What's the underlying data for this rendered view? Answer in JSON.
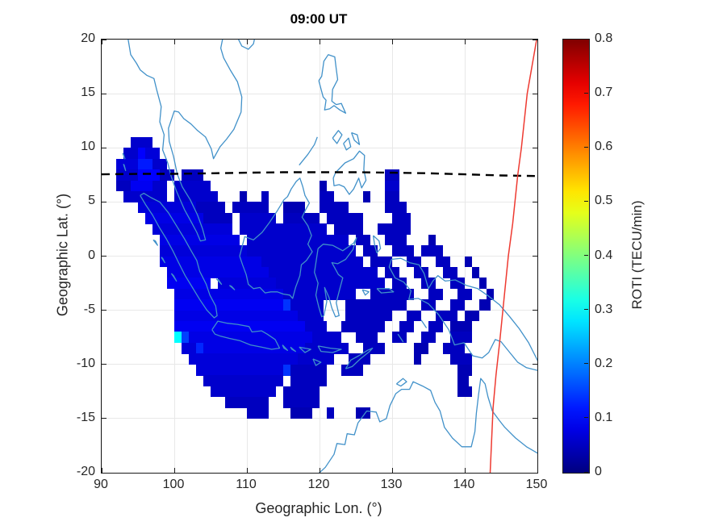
{
  "title": "09:00 UT",
  "axes": {
    "xlabel": "Geographic Lon. (°)",
    "ylabel": "Geographic Lat. (°)",
    "xlim": [
      90,
      150
    ],
    "ylim": [
      -20,
      20
    ],
    "xticks": [
      90,
      100,
      110,
      120,
      130,
      140,
      150
    ],
    "yticks": [
      20,
      15,
      10,
      5,
      0,
      -5,
      -10,
      -15,
      -20
    ]
  },
  "colorbar": {
    "label": "ROTI (TECU/min)",
    "min": 0,
    "max": 0.8,
    "ticks": [
      0,
      0.1,
      0.2,
      0.3,
      0.4,
      0.5,
      0.6,
      0.7,
      0.8
    ],
    "colormap": "jet"
  },
  "colors": {
    "coastline": "#4191c9",
    "magnetic_equator": "#000000",
    "terminator": "#ee3a31",
    "grid": "#e8e8e8",
    "label_text": "#262626"
  },
  "chart_data": {
    "type": "heatmap",
    "title": "09:00 UT",
    "xlabel": "Geographic Lon. (°)",
    "ylabel": "Geographic Lat. (°)",
    "xlim": [
      90,
      150
    ],
    "ylim": [
      -20,
      20
    ],
    "grid": true,
    "value_name": "ROTI",
    "value_unit": "TECU/min",
    "value_range": [
      0,
      0.8
    ],
    "cell_size_deg": 1,
    "rows_note": "lat_top = top latitude of 1-deg row; spans = [lon_start, lon_end, ROTI value]",
    "rows": [
      {
        "lat_top": 11,
        "spans": [
          [
            94,
            97,
            0.06
          ]
        ]
      },
      {
        "lat_top": 10,
        "spans": [
          [
            93,
            95,
            0.06
          ],
          [
            95,
            96,
            0.1
          ],
          [
            96,
            98,
            0.07
          ]
        ]
      },
      {
        "lat_top": 9,
        "spans": [
          [
            92,
            95,
            0.07
          ],
          [
            95,
            97,
            0.12
          ],
          [
            97,
            99,
            0.06
          ]
        ]
      },
      {
        "lat_top": 8,
        "spans": [
          [
            92,
            95,
            0.06
          ],
          [
            95,
            98,
            0.1
          ],
          [
            98,
            100,
            0.05
          ],
          [
            101,
            104,
            0.05
          ],
          [
            129,
            131,
            0.05
          ]
        ]
      },
      {
        "lat_top": 7,
        "spans": [
          [
            92,
            94,
            0.05
          ],
          [
            94,
            97,
            0.09
          ],
          [
            97,
            99,
            0.06
          ],
          [
            100,
            105,
            0.06
          ],
          [
            120,
            121,
            0.04
          ],
          [
            129,
            131,
            0.06
          ]
        ]
      },
      {
        "lat_top": 6,
        "spans": [
          [
            93,
            99,
            0.06
          ],
          [
            100,
            106,
            0.06
          ],
          [
            109,
            110,
            0.04
          ],
          [
            112,
            113,
            0.05
          ],
          [
            120,
            122,
            0.05
          ],
          [
            126,
            127,
            0.04
          ],
          [
            129,
            131,
            0.05
          ]
        ]
      },
      {
        "lat_top": 5,
        "spans": [
          [
            95,
            103,
            0.07
          ],
          [
            103,
            107,
            0.05
          ],
          [
            108,
            113,
            0.05
          ],
          [
            115,
            118,
            0.04
          ],
          [
            120,
            124,
            0.05
          ],
          [
            129,
            132,
            0.05
          ]
        ]
      },
      {
        "lat_top": 4,
        "spans": [
          [
            96,
            104,
            0.08
          ],
          [
            104,
            108,
            0.05
          ],
          [
            109,
            114,
            0.06
          ],
          [
            115,
            120,
            0.05
          ],
          [
            121,
            126,
            0.05
          ],
          [
            130,
            132.5,
            0.05
          ]
        ]
      },
      {
        "lat_top": 3,
        "spans": [
          [
            97,
            108,
            0.07
          ],
          [
            109,
            121,
            0.06
          ],
          [
            122,
            126,
            0.05
          ],
          [
            128,
            132.5,
            0.05
          ]
        ]
      },
      {
        "lat_top": 2,
        "spans": [
          [
            98,
            109,
            0.08
          ],
          [
            110,
            124,
            0.06
          ],
          [
            125,
            127,
            0.05
          ],
          [
            129,
            132,
            0.05
          ],
          [
            135,
            136,
            0.04
          ]
        ]
      },
      {
        "lat_top": 1,
        "spans": [
          [
            98,
            110,
            0.07
          ],
          [
            110,
            125,
            0.06
          ],
          [
            126,
            128,
            0.05
          ],
          [
            130,
            133,
            0.05
          ],
          [
            134,
            137,
            0.05
          ]
        ]
      },
      {
        "lat_top": 0,
        "spans": [
          [
            98,
            112,
            0.08
          ],
          [
            112,
            126,
            0.06
          ],
          [
            127,
            130,
            0.05
          ],
          [
            132,
            134,
            0.05
          ],
          [
            136,
            138,
            0.05
          ],
          [
            140,
            141,
            0.04
          ]
        ]
      },
      {
        "lat_top": -1,
        "spans": [
          [
            99,
            113,
            0.08
          ],
          [
            113,
            128,
            0.06
          ],
          [
            129,
            131,
            0.05
          ],
          [
            133,
            135,
            0.05
          ],
          [
            137,
            139,
            0.05
          ],
          [
            141,
            142,
            0.04
          ]
        ]
      },
      {
        "lat_top": -2,
        "spans": [
          [
            99,
            105,
            0.09
          ],
          [
            106,
            114,
            0.07
          ],
          [
            114,
            129,
            0.06
          ],
          [
            130,
            132,
            0.05
          ],
          [
            134,
            136,
            0.05
          ],
          [
            138,
            140,
            0.05
          ],
          [
            142,
            143,
            0.04
          ]
        ]
      },
      {
        "lat_top": -3,
        "spans": [
          [
            100,
            115,
            0.08
          ],
          [
            115,
            125,
            0.06
          ],
          [
            127,
            133,
            0.05
          ],
          [
            135,
            137,
            0.05
          ],
          [
            139,
            141,
            0.05
          ],
          [
            143,
            144,
            0.04
          ]
        ]
      },
      {
        "lat_top": -4,
        "spans": [
          [
            100,
            115,
            0.09
          ],
          [
            115,
            116,
            0.14
          ],
          [
            116,
            120.5,
            0.06
          ],
          [
            123.5,
            132,
            0.05
          ],
          [
            134,
            136,
            0.05
          ],
          [
            138,
            140,
            0.05
          ],
          [
            142,
            143.5,
            0.04
          ]
        ]
      },
      {
        "lat_top": -5,
        "spans": [
          [
            100,
            117,
            0.08
          ],
          [
            117,
            120.5,
            0.06
          ],
          [
            123.5,
            130,
            0.05
          ],
          [
            132,
            134,
            0.05
          ],
          [
            136,
            139,
            0.05
          ],
          [
            140,
            142,
            0.04
          ]
        ]
      },
      {
        "lat_top": -6,
        "spans": [
          [
            100,
            118,
            0.09
          ],
          [
            118,
            121,
            0.06
          ],
          [
            123,
            129,
            0.05
          ],
          [
            131,
            133,
            0.05
          ],
          [
            135,
            137,
            0.05
          ],
          [
            138,
            141,
            0.04
          ]
        ]
      },
      {
        "lat_top": -7,
        "spans": [
          [
            100,
            101,
            0.3
          ],
          [
            101,
            102,
            0.15
          ],
          [
            102,
            119,
            0.08
          ],
          [
            119,
            123,
            0.06
          ],
          [
            125,
            128,
            0.05
          ],
          [
            130,
            132,
            0.05
          ],
          [
            134,
            136,
            0.05
          ],
          [
            138,
            141,
            0.05
          ]
        ]
      },
      {
        "lat_top": -8,
        "spans": [
          [
            101,
            103,
            0.07
          ],
          [
            103,
            104,
            0.13
          ],
          [
            104,
            118,
            0.08
          ],
          [
            118,
            124,
            0.06
          ],
          [
            126,
            129,
            0.05
          ],
          [
            133,
            135,
            0.04
          ],
          [
            137,
            140,
            0.05
          ]
        ]
      },
      {
        "lat_top": -9,
        "spans": [
          [
            102,
            117,
            0.07
          ],
          [
            117,
            122,
            0.06
          ],
          [
            124,
            127,
            0.05
          ],
          [
            133,
            134,
            0.04
          ],
          [
            138,
            141,
            0.05
          ]
        ]
      },
      {
        "lat_top": -10,
        "spans": [
          [
            103,
            115,
            0.07
          ],
          [
            115,
            116,
            0.14
          ],
          [
            116,
            121,
            0.05
          ],
          [
            123,
            126,
            0.05
          ],
          [
            139,
            141,
            0.04
          ]
        ]
      },
      {
        "lat_top": -11,
        "spans": [
          [
            104,
            115,
            0.06
          ],
          [
            116,
            121,
            0.05
          ],
          [
            139,
            140.5,
            0.04
          ]
        ]
      },
      {
        "lat_top": -12,
        "spans": [
          [
            105,
            114,
            0.06
          ],
          [
            115,
            120,
            0.05
          ],
          [
            139,
            141,
            0.04
          ]
        ]
      },
      {
        "lat_top": -13,
        "spans": [
          [
            107,
            113,
            0.05
          ],
          [
            115,
            120,
            0.05
          ]
        ]
      },
      {
        "lat_top": -14,
        "spans": [
          [
            110,
            113,
            0.05
          ],
          [
            116,
            119,
            0.04
          ],
          [
            121,
            122,
            0.05
          ],
          [
            125,
            127,
            0.04
          ]
        ]
      }
    ],
    "overlays": [
      {
        "name": "magnetic-equator",
        "style": "dashed-black",
        "points": [
          [
            90,
            7.55
          ],
          [
            95,
            7.6
          ],
          [
            100,
            7.6
          ],
          [
            105,
            7.65
          ],
          [
            110,
            7.7
          ],
          [
            115,
            7.75
          ],
          [
            120,
            7.75
          ],
          [
            125,
            7.75
          ],
          [
            130,
            7.7
          ],
          [
            135,
            7.65
          ],
          [
            140,
            7.55
          ],
          [
            145,
            7.45
          ],
          [
            150,
            7.4
          ]
        ]
      },
      {
        "name": "terminator-line",
        "style": "solid-red",
        "points": [
          [
            149.9,
            20
          ],
          [
            148.6,
            15
          ],
          [
            147.8,
            10
          ],
          [
            147.3,
            7.5
          ],
          [
            146.6,
            3
          ],
          [
            146,
            0
          ],
          [
            145.4,
            -4
          ],
          [
            144.8,
            -8
          ],
          [
            144.3,
            -11
          ],
          [
            143.9,
            -14
          ],
          [
            143.7,
            -17
          ],
          [
            143.5,
            -20
          ]
        ]
      }
    ],
    "legend_position": "colorbar-right"
  }
}
